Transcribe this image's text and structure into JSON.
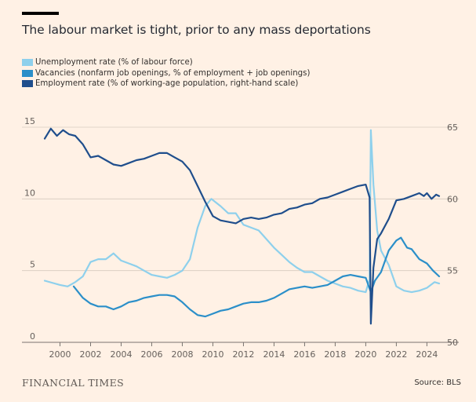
{
  "title": "The labour market is tight, prior to any mass deportations",
  "footer": {
    "brand": "FINANCIAL TIMES",
    "source": "Source: BLS"
  },
  "colors": {
    "background": "#FFF1E5",
    "unemployment": "#8ED0EC",
    "vacancies": "#2B8FC9",
    "employment": "#1F4E8C",
    "grid": "#D6CBBF"
  },
  "chart_data": {
    "type": "line",
    "x_ticks": [
      "2000",
      "2002",
      "2004",
      "2006",
      "2008",
      "2010",
      "2012",
      "2014",
      "2016",
      "2018",
      "2020",
      "2022",
      "2024"
    ],
    "x_range": [
      1999.0,
      2024.8
    ],
    "left_axis": {
      "ticks": [
        "0",
        "5",
        "10",
        "15"
      ],
      "range": [
        0,
        15
      ]
    },
    "right_axis": {
      "ticks": [
        "50",
        "55",
        "60",
        "65"
      ],
      "range": [
        50,
        65
      ]
    },
    "grid": true,
    "legend_position": "top-left",
    "series": [
      {
        "name": "Unemployment rate (% of labour force)",
        "axis": "left",
        "points": [
          [
            1999.0,
            4.3
          ],
          [
            2000.0,
            4.0
          ],
          [
            2000.5,
            3.9
          ],
          [
            2001.0,
            4.2
          ],
          [
            2001.5,
            4.6
          ],
          [
            2002.0,
            5.6
          ],
          [
            2002.5,
            5.8
          ],
          [
            2003.0,
            5.8
          ],
          [
            2003.5,
            6.2
          ],
          [
            2004.0,
            5.7
          ],
          [
            2004.5,
            5.5
          ],
          [
            2005.0,
            5.3
          ],
          [
            2005.5,
            5.0
          ],
          [
            2006.0,
            4.7
          ],
          [
            2006.5,
            4.6
          ],
          [
            2007.0,
            4.5
          ],
          [
            2007.5,
            4.7
          ],
          [
            2008.0,
            5.0
          ],
          [
            2008.5,
            5.8
          ],
          [
            2009.0,
            8.0
          ],
          [
            2009.5,
            9.5
          ],
          [
            2009.9,
            10.0
          ],
          [
            2010.5,
            9.5
          ],
          [
            2011.0,
            9.0
          ],
          [
            2011.5,
            9.0
          ],
          [
            2012.0,
            8.2
          ],
          [
            2012.5,
            8.0
          ],
          [
            2013.0,
            7.8
          ],
          [
            2013.5,
            7.2
          ],
          [
            2014.0,
            6.6
          ],
          [
            2014.5,
            6.1
          ],
          [
            2015.0,
            5.6
          ],
          [
            2015.5,
            5.2
          ],
          [
            2016.0,
            4.9
          ],
          [
            2016.5,
            4.9
          ],
          [
            2017.0,
            4.6
          ],
          [
            2017.5,
            4.3
          ],
          [
            2018.0,
            4.1
          ],
          [
            2018.5,
            3.9
          ],
          [
            2019.0,
            3.8
          ],
          [
            2019.5,
            3.6
          ],
          [
            2020.0,
            3.5
          ],
          [
            2020.25,
            4.4
          ],
          [
            2020.33,
            14.8
          ],
          [
            2020.5,
            11.0
          ],
          [
            2020.75,
            7.8
          ],
          [
            2021.0,
            6.4
          ],
          [
            2021.5,
            5.4
          ],
          [
            2022.0,
            3.9
          ],
          [
            2022.5,
            3.6
          ],
          [
            2023.0,
            3.5
          ],
          [
            2023.5,
            3.6
          ],
          [
            2024.0,
            3.8
          ],
          [
            2024.5,
            4.2
          ],
          [
            2024.8,
            4.1
          ]
        ]
      },
      {
        "name": "Vacancies (nonfarm job openings, % of employment + job openings)",
        "axis": "left",
        "points": [
          [
            2000.9,
            3.9
          ],
          [
            2001.5,
            3.1
          ],
          [
            2002.0,
            2.7
          ],
          [
            2002.5,
            2.5
          ],
          [
            2003.0,
            2.5
          ],
          [
            2003.5,
            2.3
          ],
          [
            2004.0,
            2.5
          ],
          [
            2004.5,
            2.8
          ],
          [
            2005.0,
            2.9
          ],
          [
            2005.5,
            3.1
          ],
          [
            2006.0,
            3.2
          ],
          [
            2006.5,
            3.3
          ],
          [
            2007.0,
            3.3
          ],
          [
            2007.5,
            3.2
          ],
          [
            2008.0,
            2.8
          ],
          [
            2008.5,
            2.3
          ],
          [
            2009.0,
            1.9
          ],
          [
            2009.5,
            1.8
          ],
          [
            2010.0,
            2.0
          ],
          [
            2010.5,
            2.2
          ],
          [
            2011.0,
            2.3
          ],
          [
            2011.5,
            2.5
          ],
          [
            2012.0,
            2.7
          ],
          [
            2012.5,
            2.8
          ],
          [
            2013.0,
            2.8
          ],
          [
            2013.5,
            2.9
          ],
          [
            2014.0,
            3.1
          ],
          [
            2014.5,
            3.4
          ],
          [
            2015.0,
            3.7
          ],
          [
            2015.5,
            3.8
          ],
          [
            2016.0,
            3.9
          ],
          [
            2016.5,
            3.8
          ],
          [
            2017.0,
            3.9
          ],
          [
            2017.5,
            4.0
          ],
          [
            2018.0,
            4.3
          ],
          [
            2018.5,
            4.6
          ],
          [
            2019.0,
            4.7
          ],
          [
            2019.5,
            4.6
          ],
          [
            2020.0,
            4.5
          ],
          [
            2020.33,
            3.5
          ],
          [
            2020.6,
            4.3
          ],
          [
            2021.0,
            4.9
          ],
          [
            2021.5,
            6.4
          ],
          [
            2022.0,
            7.1
          ],
          [
            2022.3,
            7.3
          ],
          [
            2022.7,
            6.6
          ],
          [
            2023.0,
            6.5
          ],
          [
            2023.5,
            5.8
          ],
          [
            2024.0,
            5.5
          ],
          [
            2024.4,
            5.0
          ],
          [
            2024.8,
            4.6
          ]
        ]
      },
      {
        "name": "Employment rate (% of working-age population, right-hand scale)",
        "axis": "right",
        "points": [
          [
            1999.0,
            64.2
          ],
          [
            1999.4,
            64.9
          ],
          [
            1999.8,
            64.4
          ],
          [
            2000.2,
            64.8
          ],
          [
            2000.6,
            64.5
          ],
          [
            2001.0,
            64.4
          ],
          [
            2001.5,
            63.8
          ],
          [
            2002.0,
            62.9
          ],
          [
            2002.5,
            63.0
          ],
          [
            2003.0,
            62.7
          ],
          [
            2003.5,
            62.4
          ],
          [
            2004.0,
            62.3
          ],
          [
            2004.5,
            62.5
          ],
          [
            2005.0,
            62.7
          ],
          [
            2005.5,
            62.8
          ],
          [
            2006.0,
            63.0
          ],
          [
            2006.5,
            63.2
          ],
          [
            2007.0,
            63.2
          ],
          [
            2007.5,
            62.9
          ],
          [
            2008.0,
            62.6
          ],
          [
            2008.5,
            62.0
          ],
          [
            2009.0,
            60.9
          ],
          [
            2009.5,
            59.8
          ],
          [
            2010.0,
            58.8
          ],
          [
            2010.5,
            58.5
          ],
          [
            2011.0,
            58.4
          ],
          [
            2011.5,
            58.3
          ],
          [
            2012.0,
            58.6
          ],
          [
            2012.5,
            58.7
          ],
          [
            2013.0,
            58.6
          ],
          [
            2013.5,
            58.7
          ],
          [
            2014.0,
            58.9
          ],
          [
            2014.5,
            59.0
          ],
          [
            2015.0,
            59.3
          ],
          [
            2015.5,
            59.4
          ],
          [
            2016.0,
            59.6
          ],
          [
            2016.5,
            59.7
          ],
          [
            2017.0,
            60.0
          ],
          [
            2017.5,
            60.1
          ],
          [
            2018.0,
            60.3
          ],
          [
            2018.5,
            60.5
          ],
          [
            2019.0,
            60.7
          ],
          [
            2019.5,
            60.9
          ],
          [
            2020.0,
            61.0
          ],
          [
            2020.25,
            60.1
          ],
          [
            2020.33,
            51.3
          ],
          [
            2020.5,
            55.2
          ],
          [
            2020.75,
            57.2
          ],
          [
            2021.0,
            57.6
          ],
          [
            2021.5,
            58.6
          ],
          [
            2022.0,
            59.9
          ],
          [
            2022.5,
            60.0
          ],
          [
            2023.0,
            60.2
          ],
          [
            2023.5,
            60.4
          ],
          [
            2023.8,
            60.2
          ],
          [
            2024.0,
            60.4
          ],
          [
            2024.3,
            60.0
          ],
          [
            2024.6,
            60.3
          ],
          [
            2024.8,
            60.2
          ]
        ]
      }
    ]
  }
}
